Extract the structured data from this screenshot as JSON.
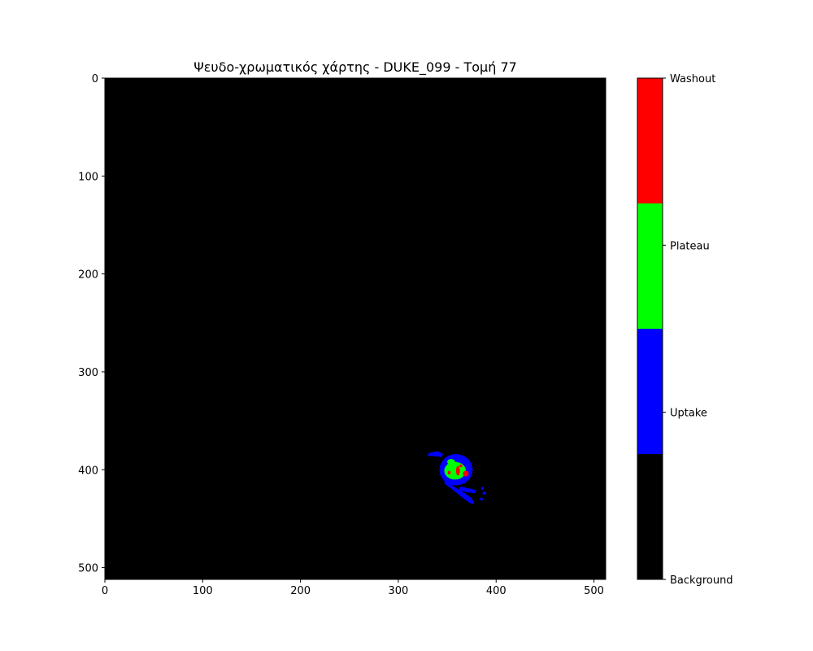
{
  "chart_data": {
    "type": "heatmap",
    "title": "Ψευδο-χρωματικός χάρτης - DUKE_099 - Τομή 77",
    "xlabel": "",
    "ylabel": "",
    "image_size": [
      512,
      512
    ],
    "xlim": [
      0,
      512
    ],
    "ylim": [
      512,
      0
    ],
    "x_ticks": [
      0,
      100,
      200,
      300,
      400,
      500
    ],
    "y_ticks": [
      0,
      100,
      200,
      300,
      400,
      500
    ],
    "background_color": "#000000",
    "classes": [
      {
        "value": 0,
        "name": "Background",
        "color": "#000000"
      },
      {
        "value": 1,
        "name": "Uptake",
        "color": "#0000ff"
      },
      {
        "value": 2,
        "name": "Plateau",
        "color": "#00ff00"
      },
      {
        "value": 3,
        "name": "Washout",
        "color": "#ff0000"
      }
    ],
    "colorbar": {
      "placement": "right",
      "labels": [
        "Background",
        "Uptake",
        "Plateau",
        "Washout"
      ]
    },
    "regions": [
      {
        "class": "Uptake",
        "shape": "ellipse",
        "cx": 359,
        "cy": 400,
        "rx": 17,
        "ry": 16
      },
      {
        "class": "Uptake",
        "shape": "polygon",
        "points": [
          [
            348,
            410
          ],
          [
            358,
            418
          ],
          [
            368,
            424
          ],
          [
            375,
            429
          ],
          [
            378,
            435
          ],
          [
            373,
            434
          ],
          [
            365,
            428
          ],
          [
            355,
            420
          ],
          [
            347,
            414
          ]
        ]
      },
      {
        "class": "Uptake",
        "shape": "polygon",
        "points": [
          [
            331,
            383
          ],
          [
            340,
            381
          ],
          [
            346,
            384
          ],
          [
            344,
            387
          ],
          [
            336,
            386
          ],
          [
            330,
            386
          ]
        ]
      },
      {
        "class": "Uptake",
        "shape": "polygon",
        "points": [
          [
            363,
            417
          ],
          [
            372,
            419
          ],
          [
            380,
            421
          ],
          [
            378,
            424
          ],
          [
            370,
            423
          ],
          [
            362,
            421
          ]
        ]
      },
      {
        "class": "Uptake",
        "shape": "ellipse",
        "cx": 386,
        "cy": 419,
        "rx": 1.5,
        "ry": 1.5
      },
      {
        "class": "Uptake",
        "shape": "ellipse",
        "cx": 388,
        "cy": 424,
        "rx": 2,
        "ry": 1.5
      },
      {
        "class": "Uptake",
        "shape": "ellipse",
        "cx": 385,
        "cy": 430,
        "rx": 1.5,
        "ry": 1.5
      },
      {
        "class": "Plateau",
        "shape": "ellipse",
        "cx": 358,
        "cy": 401,
        "rx": 11,
        "ry": 9
      },
      {
        "class": "Plateau",
        "shape": "ellipse",
        "cx": 354,
        "cy": 392,
        "rx": 4,
        "ry": 3
      },
      {
        "class": "Washout",
        "shape": "ellipse",
        "cx": 361,
        "cy": 401,
        "rx": 2,
        "ry": 5
      },
      {
        "class": "Washout",
        "shape": "ellipse",
        "cx": 369,
        "cy": 404,
        "rx": 3,
        "ry": 3
      },
      {
        "class": "Washout",
        "shape": "ellipse",
        "cx": 352,
        "cy": 403,
        "rx": 1.5,
        "ry": 2
      },
      {
        "class": "Washout",
        "shape": "ellipse",
        "cx": 364,
        "cy": 396,
        "rx": 1.5,
        "ry": 1.5
      }
    ]
  }
}
